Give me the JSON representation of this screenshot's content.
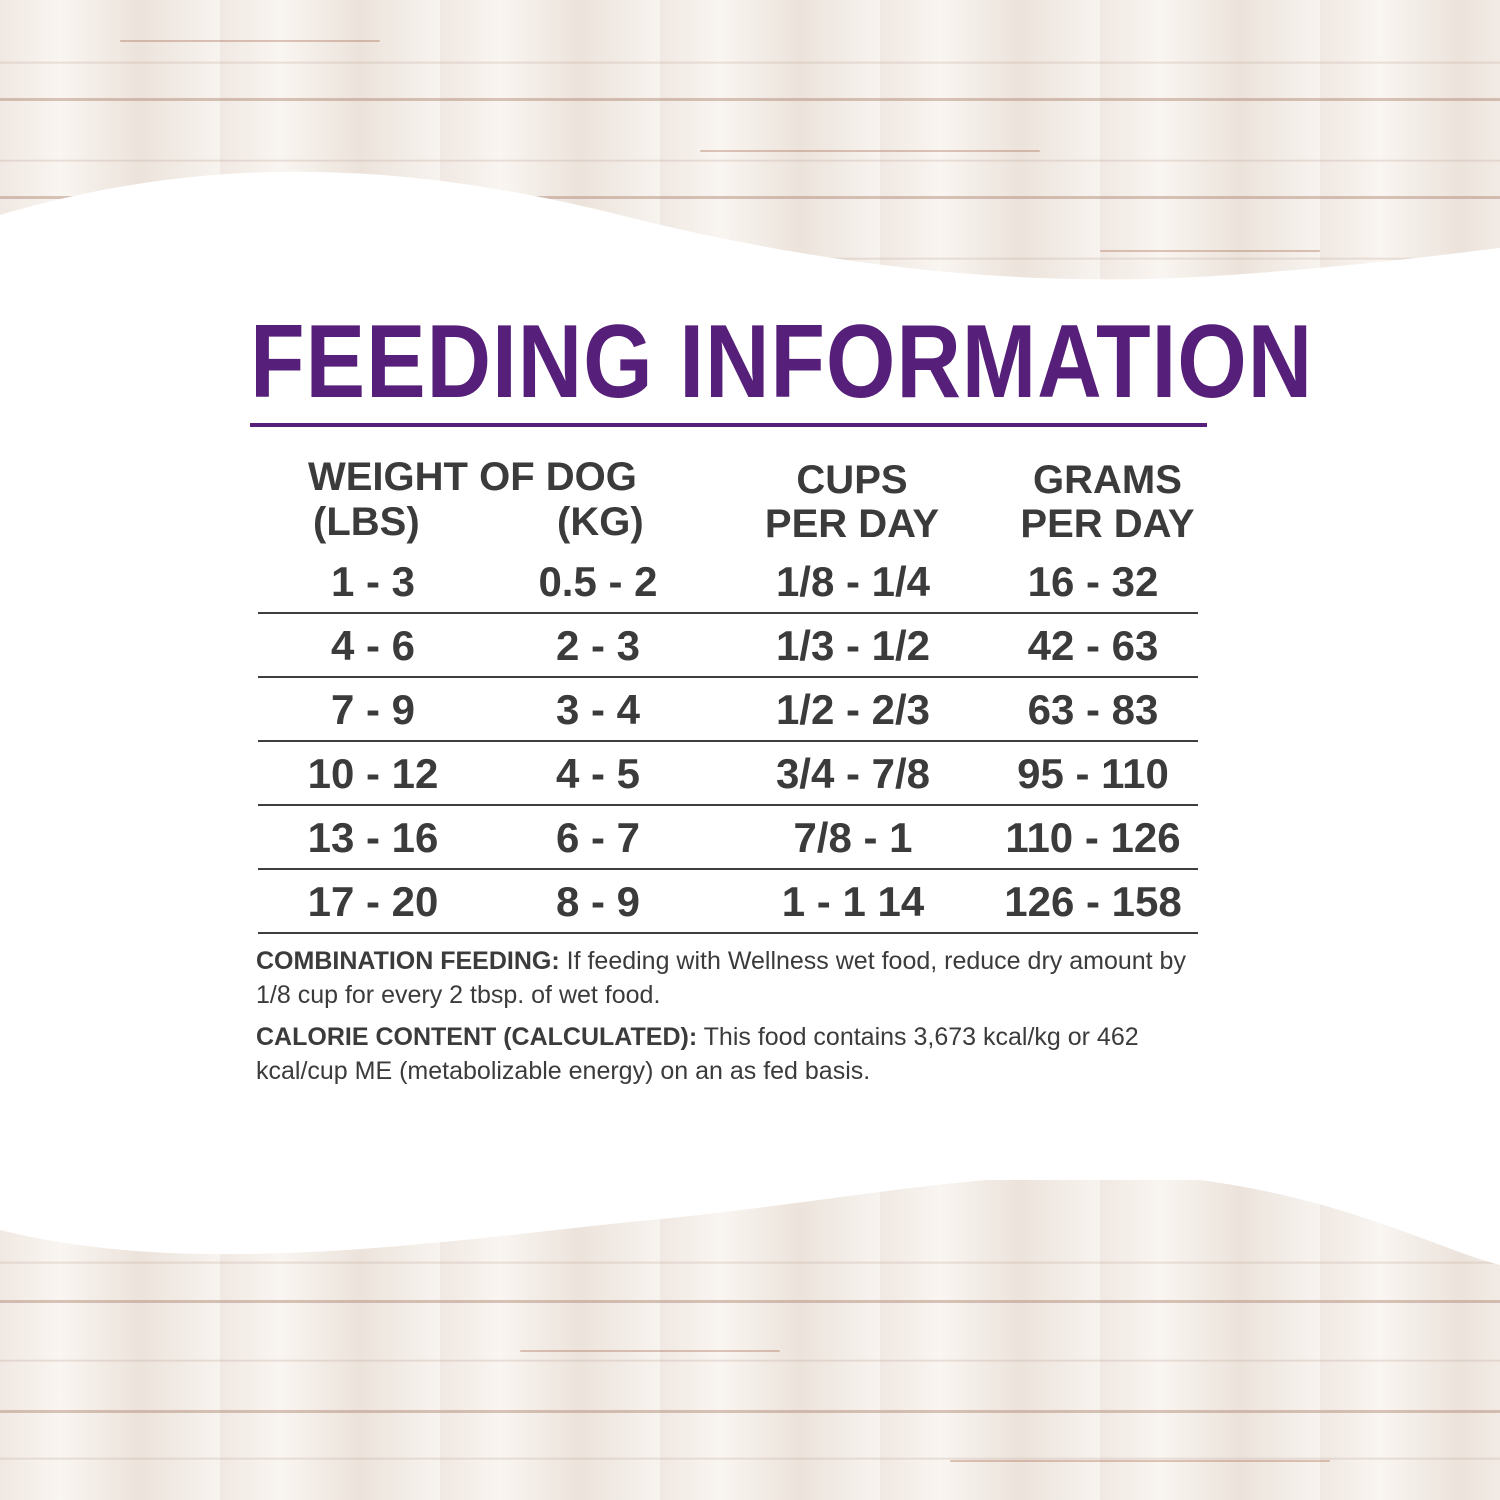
{
  "title": "FEEDING INFORMATION",
  "colors": {
    "accent": "#56207a",
    "text": "#3b3b3b"
  },
  "headers": {
    "weight": "WEIGHT OF DOG",
    "lbs": "(LBS)",
    "kg": "(KG)",
    "cups_line1": "CUPS",
    "cups_line2": "PER DAY",
    "grams_line1": "GRAMS",
    "grams_line2": "PER DAY"
  },
  "rows": [
    [
      "1 - 3",
      "0.5 - 2",
      "1/8 - 1/4",
      "16 - 32"
    ],
    [
      "4 - 6",
      "2 - 3",
      "1/3 - 1/2",
      "42 - 63"
    ],
    [
      "7 - 9",
      "3 - 4",
      "1/2 - 2/3",
      "63 - 83"
    ],
    [
      "10 - 12",
      "4 - 5",
      "3/4 - 7/8",
      "95 - 110"
    ],
    [
      "13 - 16",
      "6 - 7",
      "7/8 - 1",
      "110 - 126"
    ],
    [
      "17 - 20",
      "8 - 9",
      "1 - 1 14",
      "126 - 158"
    ]
  ],
  "notes": {
    "combination_label": "COMBINATION FEEDING:",
    "combination_text": " If feeding with Wellness wet food, reduce dry amount by 1/8 cup for every 2 tbsp. of wet food.",
    "calorie_label": "CALORIE CONTENT (CALCULATED):",
    "calorie_text": " This food contains 3,673 kcal/kg or 462 kcal/cup ME (metabolizable energy) on an as fed basis."
  }
}
